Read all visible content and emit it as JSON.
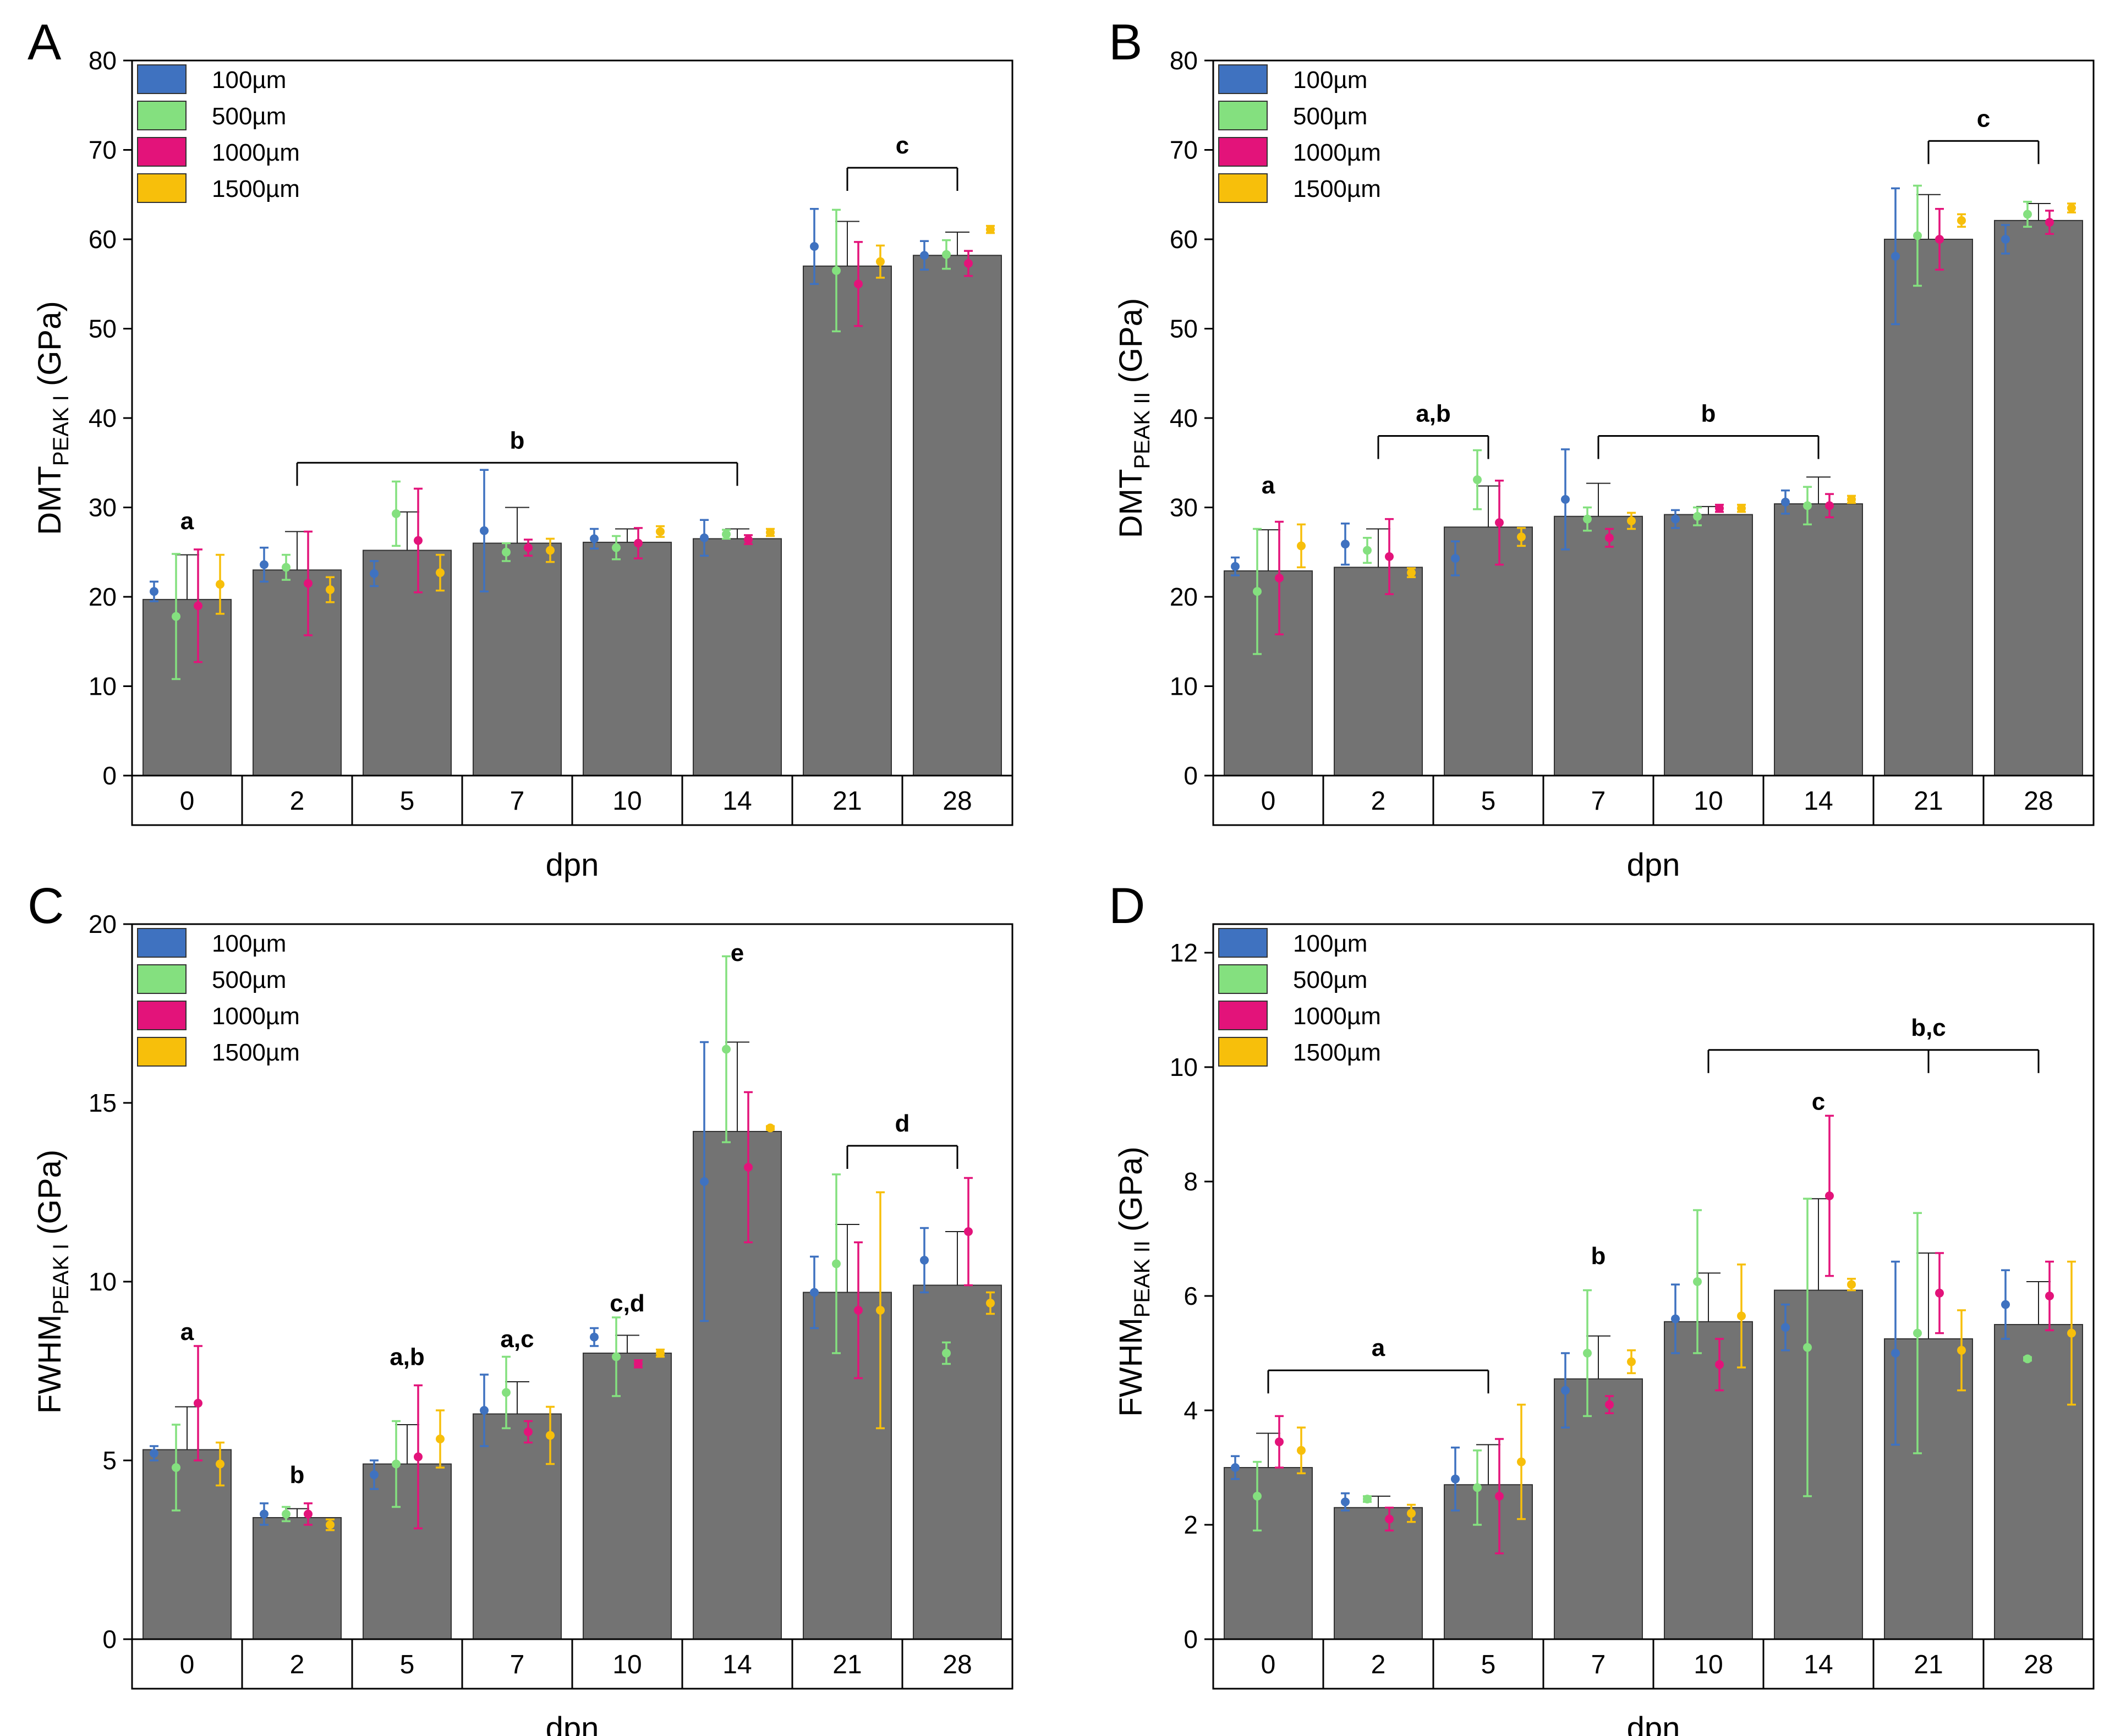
{
  "figure": {
    "colors": {
      "bar": "#737373",
      "bar_edge": "#333333",
      "frame": "#000000",
      "series": [
        "#3f72c0",
        "#84e07f",
        "#e3137a",
        "#f7bf0b"
      ]
    }
  },
  "chart_data": [
    {
      "type": "bar",
      "panel": "A",
      "title": "",
      "xlabel": "dpn",
      "ylabel": "DMTPEAK I (GPa)",
      "ylabel_main": "DMT",
      "ylabel_sub": "PEAK I",
      "ylabel_unit": " (GPa)",
      "ylim": [
        0,
        80
      ],
      "yticks": [
        "0",
        "10",
        "20",
        "30",
        "40",
        "50",
        "60",
        "70",
        "80"
      ],
      "categories": [
        "0",
        "2",
        "5",
        "7",
        "10",
        "14",
        "21",
        "28"
      ],
      "legend": {
        "placement": "top-left",
        "entries": [
          "100µm",
          "500µm",
          "1000µm",
          "1500µm"
        ]
      },
      "bar_values": [
        19.7,
        23.0,
        25.2,
        26.0,
        26.1,
        26.5,
        57.0,
        58.2
      ],
      "bar_errors": [
        5.0,
        4.3,
        4.3,
        4.0,
        1.5,
        1.1,
        5.0,
        2.6
      ],
      "series": [
        {
          "name": "100µm",
          "values": [
            20.6,
            23.6,
            22.6,
            27.4,
            26.5,
            26.6,
            59.2,
            58.2
          ],
          "errors": [
            1.1,
            1.9,
            1.4,
            6.8,
            1.1,
            2.0,
            4.2,
            1.6
          ]
        },
        {
          "name": "500µm",
          "values": [
            17.8,
            23.3,
            29.3,
            25.0,
            25.5,
            27.0,
            56.5,
            58.3
          ],
          "errors": [
            7.0,
            1.4,
            3.6,
            1.0,
            1.3,
            0.5,
            6.8,
            1.6
          ]
        },
        {
          "name": "1000µm",
          "values": [
            19.0,
            21.5,
            26.3,
            25.5,
            26.0,
            26.4,
            55.0,
            57.3
          ],
          "errors": [
            6.3,
            5.8,
            5.8,
            0.9,
            1.7,
            0.5,
            4.7,
            1.4
          ]
        },
        {
          "name": "1500µm",
          "values": [
            21.4,
            20.8,
            22.7,
            25.2,
            27.3,
            27.2,
            57.5,
            61.1
          ],
          "errors": [
            3.3,
            1.4,
            2.0,
            1.3,
            0.6,
            0.4,
            1.8,
            0.4
          ]
        }
      ],
      "significance": [
        {
          "label": "a",
          "type": "text",
          "category": "0",
          "value": 28.5
        },
        {
          "label": "b",
          "type": "bracket",
          "from": "2",
          "to": "14",
          "value": 35,
          "label_at": "7"
        },
        {
          "label": "c",
          "type": "bracket",
          "from": "21",
          "to": "28",
          "value": 68
        }
      ]
    },
    {
      "type": "bar",
      "panel": "B",
      "title": "",
      "xlabel": "dpn",
      "ylabel": "DMTPEAK II (GPa)",
      "ylabel_main": "DMT",
      "ylabel_sub": "PEAK II",
      "ylabel_unit": " (GPa)",
      "ylim": [
        0,
        80
      ],
      "yticks": [
        "0",
        "10",
        "20",
        "30",
        "40",
        "50",
        "60",
        "70",
        "80"
      ],
      "categories": [
        "0",
        "2",
        "5",
        "7",
        "10",
        "14",
        "21",
        "28"
      ],
      "legend": {
        "placement": "top-left",
        "entries": [
          "100µm",
          "500µm",
          "1000µm",
          "1500µm"
        ]
      },
      "bar_values": [
        22.9,
        23.3,
        27.8,
        29.0,
        29.2,
        30.4,
        60.0,
        62.1
      ],
      "bar_errors": [
        4.6,
        4.3,
        4.6,
        3.7,
        0.9,
        3.0,
        5.0,
        1.9
      ],
      "series": [
        {
          "name": "100µm",
          "values": [
            23.4,
            25.9,
            24.3,
            30.9,
            28.7,
            30.6,
            58.1,
            60.0
          ],
          "errors": [
            1.0,
            2.3,
            1.9,
            5.6,
            1.0,
            1.3,
            7.6,
            1.6
          ]
        },
        {
          "name": "500µm",
          "values": [
            20.6,
            25.2,
            33.1,
            28.7,
            29.0,
            30.2,
            60.4,
            62.8
          ],
          "errors": [
            7.0,
            1.4,
            3.3,
            1.3,
            1.0,
            2.1,
            5.6,
            1.4
          ]
        },
        {
          "name": "1000µm",
          "values": [
            22.1,
            24.5,
            28.3,
            26.6,
            29.9,
            30.2,
            60.0,
            61.9
          ],
          "errors": [
            6.3,
            4.2,
            4.7,
            1.0,
            0.4,
            1.3,
            3.4,
            1.3
          ]
        },
        {
          "name": "1500µm",
          "values": [
            25.7,
            22.7,
            26.7,
            28.5,
            29.9,
            30.9,
            62.1,
            63.5
          ],
          "errors": [
            2.4,
            0.5,
            1.0,
            0.9,
            0.4,
            0.4,
            0.7,
            0.5
          ]
        }
      ],
      "significance": [
        {
          "label": "a",
          "type": "text",
          "category": "0",
          "value": 32.5
        },
        {
          "label": "a,b",
          "type": "bracket",
          "from": "2",
          "to": "5",
          "value": 38
        },
        {
          "label": "b",
          "type": "bracket",
          "from": "7",
          "to": "14",
          "value": 38
        },
        {
          "label": "c",
          "type": "bracket",
          "from": "21",
          "to": "28",
          "value": 71
        }
      ]
    },
    {
      "type": "bar",
      "panel": "C",
      "title": "",
      "xlabel": "dpn",
      "ylabel": "FWHMPEAK I (GPa)",
      "ylabel_main": "FWHM",
      "ylabel_sub": "PEAK I",
      "ylabel_unit": " (GPa)",
      "ylim": [
        0,
        20
      ],
      "yticks": [
        "0",
        "5",
        "10",
        "15",
        "20"
      ],
      "categories": [
        "0",
        "2",
        "5",
        "7",
        "10",
        "14",
        "21",
        "28"
      ],
      "legend": {
        "placement": "top-left",
        "entries": [
          "100µm",
          "500µm",
          "1000µm",
          "1500µm"
        ]
      },
      "bar_values": [
        5.3,
        3.4,
        4.9,
        6.3,
        8.0,
        14.2,
        9.7,
        9.9
      ],
      "bar_errors": [
        1.2,
        0.25,
        1.1,
        0.9,
        0.5,
        2.5,
        1.9,
        1.5
      ],
      "series": [
        {
          "name": "100µm",
          "values": [
            5.2,
            3.5,
            4.6,
            6.4,
            8.45,
            12.8,
            9.7,
            10.6
          ],
          "errors": [
            0.2,
            0.3,
            0.4,
            1.0,
            0.25,
            3.9,
            1.0,
            0.9
          ]
        },
        {
          "name": "500µm",
          "values": [
            4.8,
            3.5,
            4.9,
            6.9,
            7.9,
            16.5,
            10.5,
            8.0
          ],
          "errors": [
            1.2,
            0.2,
            1.2,
            1.0,
            1.1,
            2.6,
            2.5,
            0.3
          ]
        },
        {
          "name": "1000µm",
          "values": [
            6.6,
            3.5,
            5.1,
            5.8,
            7.7,
            13.2,
            9.2,
            11.4
          ],
          "errors": [
            1.6,
            0.3,
            2.0,
            0.3,
            0.1,
            2.1,
            1.9,
            1.5
          ]
        },
        {
          "name": "1500µm",
          "values": [
            4.9,
            3.2,
            5.6,
            5.7,
            8.0,
            14.3,
            9.2,
            9.4
          ],
          "errors": [
            0.6,
            0.15,
            0.8,
            0.8,
            0.1,
            0.05,
            3.3,
            0.3
          ]
        }
      ],
      "significance": [
        {
          "label": "a",
          "type": "text",
          "category": "0",
          "value": 8.6
        },
        {
          "label": "b",
          "type": "text",
          "category": "2",
          "value": 4.6
        },
        {
          "label": "a,b",
          "type": "text",
          "category": "5",
          "value": 7.9
        },
        {
          "label": "a,c",
          "type": "text",
          "category": "7",
          "value": 8.4
        },
        {
          "label": "c,d",
          "type": "text",
          "category": "10",
          "value": 9.4
        },
        {
          "label": "e",
          "type": "text",
          "category": "14",
          "value": 19.2
        },
        {
          "label": "d",
          "type": "bracket",
          "from": "21",
          "to": "28",
          "value": 13.8
        }
      ]
    },
    {
      "type": "bar",
      "panel": "D",
      "title": "",
      "xlabel": "dpn",
      "ylabel": "FWHMPEAK II (GPa)",
      "ylabel_main": "FWHM",
      "ylabel_sub": "PEAK II",
      "ylabel_unit": " (GPa)",
      "ylim": [
        0,
        12.5
      ],
      "yticks": [
        "0",
        "2",
        "4",
        "6",
        "8",
        "10",
        "12"
      ],
      "categories": [
        "0",
        "2",
        "5",
        "7",
        "10",
        "14",
        "21",
        "28"
      ],
      "legend": {
        "placement": "top-left",
        "entries": [
          "100µm",
          "500µm",
          "1000µm",
          "1500µm"
        ]
      },
      "bar_values": [
        3.0,
        2.3,
        2.7,
        4.55,
        5.55,
        6.1,
        5.25,
        5.5
      ],
      "bar_errors": [
        0.6,
        0.2,
        0.7,
        0.75,
        0.85,
        1.6,
        1.5,
        0.75
      ],
      "series": [
        {
          "name": "100µm",
          "values": [
            3.0,
            2.4,
            2.8,
            4.35,
            5.6,
            5.45,
            5.0,
            5.85
          ],
          "errors": [
            0.2,
            0.15,
            0.55,
            0.65,
            0.6,
            0.4,
            1.6,
            0.6
          ]
        },
        {
          "name": "500µm",
          "values": [
            2.5,
            2.45,
            2.65,
            5.0,
            6.25,
            5.1,
            5.35,
            4.9
          ],
          "errors": [
            0.6,
            0.05,
            0.65,
            1.1,
            1.25,
            2.6,
            2.1,
            0.03
          ]
        },
        {
          "name": "1000µm",
          "values": [
            3.45,
            2.1,
            2.5,
            4.1,
            4.8,
            7.75,
            6.05,
            6.0
          ],
          "errors": [
            0.45,
            0.2,
            1.0,
            0.15,
            0.45,
            1.4,
            0.7,
            0.6
          ]
        },
        {
          "name": "1500µm",
          "values": [
            3.3,
            2.2,
            3.1,
            4.85,
            5.65,
            6.2,
            5.05,
            5.35
          ],
          "errors": [
            0.4,
            0.15,
            1.0,
            0.2,
            0.9,
            0.1,
            0.7,
            1.25
          ]
        }
      ],
      "significance": [
        {
          "label": "a",
          "type": "bracket",
          "from": "0",
          "to": "5",
          "value": 4.7
        },
        {
          "label": "b",
          "type": "text",
          "category": "7",
          "value": 6.7
        },
        {
          "label": "c",
          "type": "text",
          "category": "14",
          "value": 9.4
        },
        {
          "label": "b,c",
          "type": "bracket3",
          "from": "10",
          "mid": "21",
          "to": "28",
          "value": 10.3
        }
      ]
    }
  ]
}
